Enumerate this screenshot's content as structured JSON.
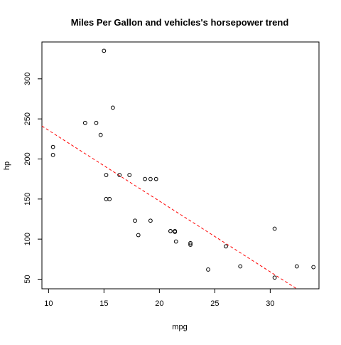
{
  "chart_data": {
    "type": "scatter",
    "title": "Miles Per Gallon and vehicles's horsepower trend",
    "xlabel": "mpg",
    "ylabel": "hp",
    "xlim": [
      9.4,
      34.4
    ],
    "ylim": [
      38,
      346
    ],
    "x_ticks": [
      10,
      15,
      20,
      25,
      30
    ],
    "y_ticks": [
      50,
      100,
      150,
      200,
      250,
      300
    ],
    "grid": false,
    "points": [
      {
        "x": 21.0,
        "y": 110
      },
      {
        "x": 21.0,
        "y": 110
      },
      {
        "x": 22.8,
        "y": 93
      },
      {
        "x": 21.4,
        "y": 110
      },
      {
        "x": 18.7,
        "y": 175
      },
      {
        "x": 18.1,
        "y": 105
      },
      {
        "x": 14.3,
        "y": 245
      },
      {
        "x": 24.4,
        "y": 62
      },
      {
        "x": 22.8,
        "y": 95
      },
      {
        "x": 19.2,
        "y": 123
      },
      {
        "x": 17.8,
        "y": 123
      },
      {
        "x": 16.4,
        "y": 180
      },
      {
        "x": 17.3,
        "y": 180
      },
      {
        "x": 15.2,
        "y": 180
      },
      {
        "x": 10.4,
        "y": 205
      },
      {
        "x": 10.4,
        "y": 215
      },
      {
        "x": 14.7,
        "y": 230
      },
      {
        "x": 32.4,
        "y": 66
      },
      {
        "x": 30.4,
        "y": 52
      },
      {
        "x": 33.9,
        "y": 65
      },
      {
        "x": 21.5,
        "y": 97
      },
      {
        "x": 15.5,
        "y": 150
      },
      {
        "x": 15.2,
        "y": 150
      },
      {
        "x": 13.3,
        "y": 245
      },
      {
        "x": 19.2,
        "y": 175
      },
      {
        "x": 27.3,
        "y": 66
      },
      {
        "x": 26.0,
        "y": 91
      },
      {
        "x": 30.4,
        "y": 113
      },
      {
        "x": 15.8,
        "y": 264
      },
      {
        "x": 19.7,
        "y": 175
      },
      {
        "x": 15.0,
        "y": 335
      },
      {
        "x": 21.4,
        "y": 109
      }
    ],
    "trend_line": {
      "style": "dashed",
      "color": "#ff0000",
      "intercept": 324.08,
      "slope": -8.83
    },
    "point_color": "#000000"
  }
}
